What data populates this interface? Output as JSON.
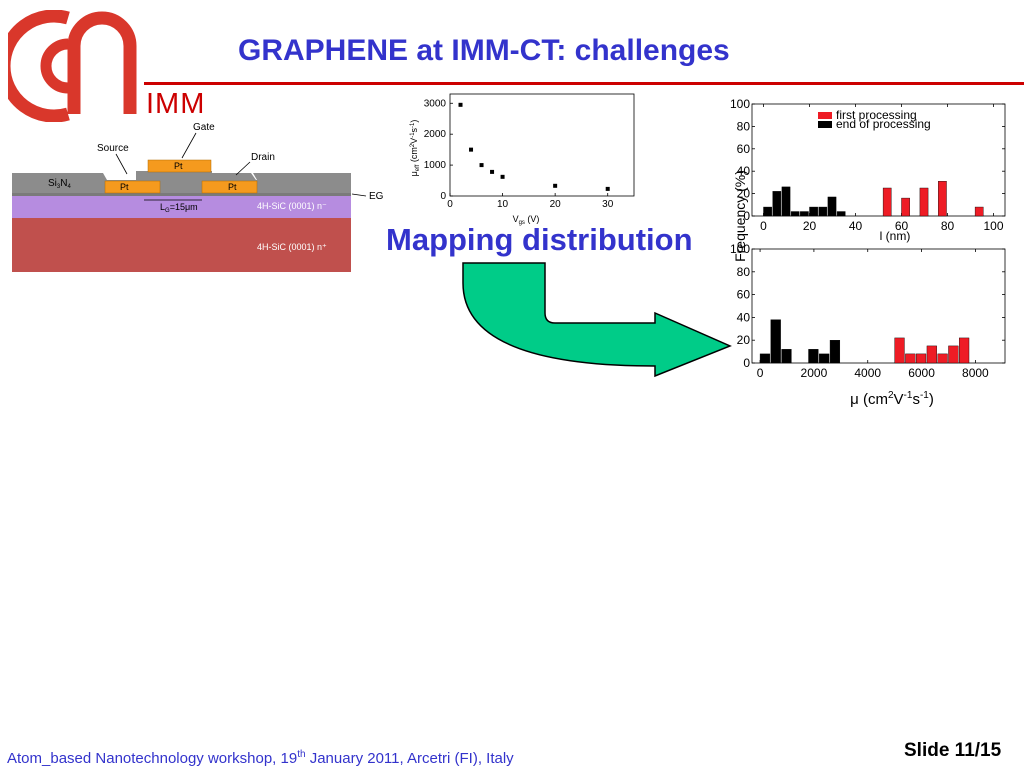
{
  "slide": {
    "title": "GRAPHENE at IMM-CT: challenges",
    "logo_text": "IMM",
    "mapping_label": "Mapping distribution",
    "footer": {
      "pre": "Atom_based Nanotechnology workshop, 19",
      "sup": "th",
      "post": " January 2011, Arcetri (FI), Italy"
    },
    "slide_number": "Slide 11/15"
  },
  "device": {
    "labels": {
      "gate": "Gate",
      "source": "Source",
      "drain": "Drain",
      "eg": "EG",
      "pt": "Pt",
      "si3n4_a": "Si",
      "si3n4_b": "3",
      "si3n4_c": "N",
      "si3n4_d": "4",
      "lg_pre": "L",
      "lg_sub": "G",
      "lg_post": "=15μm",
      "sic_n_minus": "4H-SiC (0001) n⁻",
      "sic_n_plus": "4H-SiC (0001) n⁺"
    },
    "colors": {
      "substrate": "#c0504d",
      "epilayer": "#b68ce0",
      "metal": "#f59a1e",
      "nitride": "#8c8c8c"
    }
  },
  "chart_data": [
    {
      "type": "scatter",
      "xlabel_pre": "V",
      "xlabel_sub": "gs",
      "xlabel_post": " (V)",
      "ylabel_pre": "μ",
      "ylabel_sub": "eff",
      "ylabel_mid": " (cm",
      "ylabel_sup1": "2",
      "ylabel_mid2": "V",
      "ylabel_sup2": "-1",
      "ylabel_mid3": "s",
      "ylabel_sup3": "-1",
      "ylabel_post": ")",
      "xlim": [
        0,
        35
      ],
      "ylim": [
        0,
        3300
      ],
      "xticks": [
        "0",
        "10",
        "20",
        "30"
      ],
      "yticks": [
        "0",
        "1000",
        "2000",
        "3000"
      ],
      "xtick_values": [
        0,
        10,
        20,
        30
      ],
      "ytick_values": [
        0,
        1000,
        2000,
        3000
      ],
      "points": [
        {
          "x": 2,
          "y": 2950
        },
        {
          "x": 4,
          "y": 1500
        },
        {
          "x": 6,
          "y": 1000
        },
        {
          "x": 8,
          "y": 780
        },
        {
          "x": 10,
          "y": 620
        },
        {
          "x": 20,
          "y": 330
        },
        {
          "x": 30,
          "y": 230
        }
      ]
    },
    {
      "type": "bar",
      "xlabel": "l (nm)",
      "ylabel": "Frequency (%)",
      "xlim": [
        -5,
        105
      ],
      "ylim": [
        0,
        100
      ],
      "xticks": [
        "0",
        "20",
        "40",
        "60",
        "80",
        "100"
      ],
      "xtick_values": [
        0,
        20,
        40,
        60,
        80,
        100
      ],
      "yticks": [
        "0",
        "20",
        "40",
        "60",
        "80",
        "100"
      ],
      "ytick_values": [
        0,
        20,
        40,
        60,
        80,
        100
      ],
      "bin_width": 4,
      "legend": [
        {
          "name": "first processing",
          "color": "#ee1c25"
        },
        {
          "name": "end of processing",
          "color": "#000000"
        }
      ],
      "series": [
        {
          "name": "end of processing",
          "color": "#000000",
          "x": [
            2,
            6,
            10,
            14,
            18,
            22,
            26,
            30,
            34,
            38
          ],
          "values": [
            8,
            22,
            26,
            4,
            4,
            8,
            8,
            17,
            4,
            0
          ]
        },
        {
          "name": "first processing",
          "color": "#ee1c25",
          "x": [
            54,
            62,
            70,
            78,
            86,
            94
          ],
          "values": [
            25,
            16,
            25,
            31,
            0,
            8
          ]
        }
      ]
    },
    {
      "type": "bar",
      "xlabel_pre": "μ (cm",
      "xlabel_sup1": "2",
      "xlabel_mid": "V",
      "xlabel_sup2": "-1",
      "xlabel_mid2": "s",
      "xlabel_sup3": "-1",
      "xlabel_post": ")",
      "xlim": [
        -300,
        9100
      ],
      "ylim": [
        0,
        100
      ],
      "xticks": [
        "0",
        "2000",
        "4000",
        "6000",
        "8000"
      ],
      "xtick_values": [
        0,
        2000,
        4000,
        6000,
        8000
      ],
      "yticks": [
        "0",
        "20",
        "40",
        "60",
        "80",
        "100"
      ],
      "ytick_values": [
        0,
        20,
        40,
        60,
        80,
        100
      ],
      "bin_width": 400,
      "series": [
        {
          "name": "end of processing",
          "color": "#000000",
          "x": [
            200,
            600,
            1000,
            2000,
            2400,
            2800,
            3200
          ],
          "values": [
            8,
            38,
            12,
            12,
            8,
            20,
            0
          ]
        },
        {
          "name": "first processing",
          "color": "#ee1c25",
          "x": [
            5200,
            5600,
            6000,
            6400,
            6800,
            7200,
            7600,
            8000
          ],
          "values": [
            22,
            8,
            8,
            15,
            8,
            15,
            22,
            0
          ]
        }
      ]
    }
  ]
}
